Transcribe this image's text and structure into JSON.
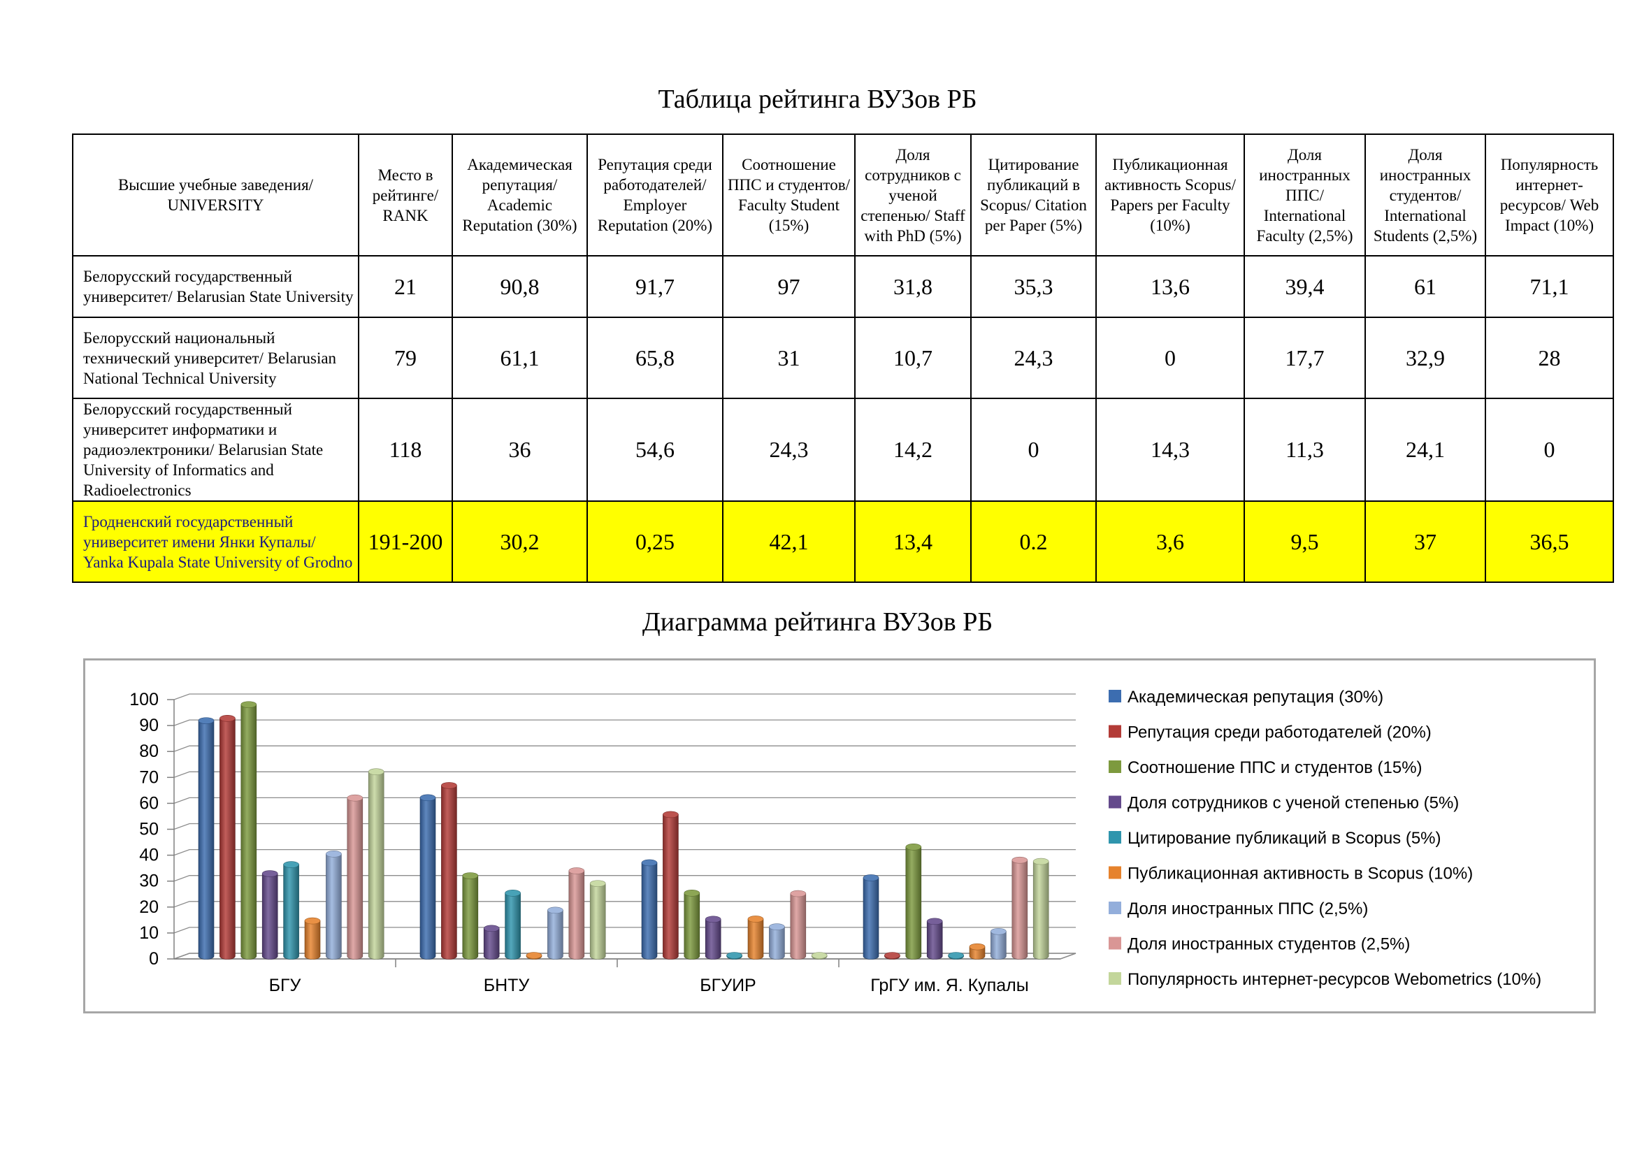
{
  "table_title": "Таблица рейтинга ВУЗов РБ",
  "chart_title": "Диаграмма рейтинга ВУЗов РБ",
  "table": {
    "headers": [
      "Высшие учебные заведения/ UNIVERSITY",
      "Место в рейтинге/ RANK",
      "Академическая репутация/ Academic Reputation (30%)",
      "Репутация среди работодателей/ Employer Reputation (20%)",
      "Соотношение ППС и студентов/ Faculty Student (15%)",
      "Доля сотрудников с ученой степенью/ Staff with PhD (5%)",
      "Цитирование публикаций в Scopus/ Citation per Paper (5%)",
      "Публикационная активность Scopus/ Papers per Faculty (10%)",
      "Доля иностранных ППС/ International Faculty (2,5%)",
      "Доля иностранных студентов/ International Students (2,5%)",
      "Популярность интернет-ресурсов/ Web Impact (10%)"
    ],
    "rows": [
      [
        "Белорусский государственный университет/ Belarusian State University",
        "21",
        "90,8",
        "91,7",
        "97",
        "31,8",
        "35,3",
        "13,6",
        "39,4",
        "61",
        "71,1"
      ],
      [
        "Белорусский национальный технический университет/ Belarusian National Technical University",
        "79",
        "61,1",
        "65,8",
        "31",
        "10,7",
        "24,3",
        "0",
        "17,7",
        "32,9",
        "28"
      ],
      [
        "Белорусский государственный университет информатики и радиоэлектроники/ Belarusian State University of Informatics and Radioelectronics",
        "118",
        "36",
        "54,6",
        "24,3",
        "14,2",
        "0",
        "14,3",
        "11,3",
        "24,1",
        "0"
      ],
      [
        "Гродненский государственный университет имени Янки Купалы/ Yanka Kupala State University of Grodno",
        "191-200",
        "30,2",
        "0,25",
        "42,1",
        "13,4",
        "0.2",
        "3,6",
        "9,5",
        "37",
        "36,5"
      ]
    ],
    "highlight_color": "#ffff00"
  },
  "chart_data": {
    "type": "bar",
    "title": "Диаграмма рейтинга ВУЗов РБ",
    "categories": [
      "БГУ",
      "БНТУ",
      "БГУИР",
      "ГрГУ им. Я. Купалы"
    ],
    "ylim": [
      0,
      100
    ],
    "yticks": [
      "0",
      "10",
      "20",
      "30",
      "40",
      "50",
      "60",
      "70",
      "80",
      "90",
      "100"
    ],
    "grid": true,
    "legend_position": "right",
    "series": [
      {
        "name": "Академическая репутация (30%)",
        "color": "#3c6db0",
        "values": [
          90.8,
          61.1,
          36,
          30.2
        ]
      },
      {
        "name": "Репутация среди работодателей (20%)",
        "color": "#b33b37",
        "values": [
          91.7,
          65.8,
          54.6,
          0.25
        ]
      },
      {
        "name": "Соотношение ППС и студентов (15%)",
        "color": "#7d9a3e",
        "values": [
          97,
          31,
          24.3,
          42.1
        ]
      },
      {
        "name": "Доля сотрудников с ученой степенью (5%)",
        "color": "#644a8c",
        "values": [
          31.8,
          10.7,
          14.2,
          13.4
        ]
      },
      {
        "name": "Цитирование публикаций в Scopus (5%)",
        "color": "#2f95ad",
        "values": [
          35.3,
          24.3,
          0,
          0.2
        ]
      },
      {
        "name": "Публикационная активность  в Scopus (10%)",
        "color": "#e6822c",
        "values": [
          13.6,
          0,
          14.3,
          3.6
        ]
      },
      {
        "name": "Доля иностранных ППС (2,5%)",
        "color": "#93aedb",
        "values": [
          39.4,
          17.7,
          11.3,
          9.5
        ]
      },
      {
        "name": "Доля иностранных студентов (2,5%)",
        "color": "#d99695",
        "values": [
          61,
          32.9,
          24.1,
          37
        ]
      },
      {
        "name": "Популярность интернет-ресурсов Webometrics (10%)",
        "color": "#c3d69b",
        "values": [
          71.1,
          28,
          0,
          36.5
        ]
      }
    ]
  }
}
